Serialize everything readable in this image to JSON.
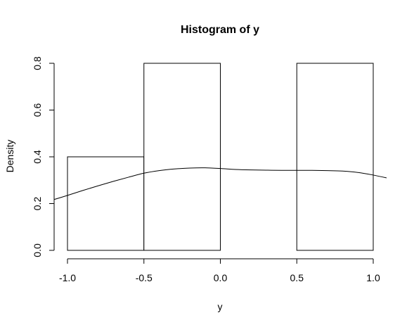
{
  "chart_data": {
    "type": "histogram",
    "title": "Histogram of y",
    "xlabel": "y",
    "ylabel": "Density",
    "bins": [
      {
        "start": -1.0,
        "end": -0.5,
        "density": 0.4
      },
      {
        "start": -0.5,
        "end": 0.0,
        "density": 0.8
      },
      {
        "start": 0.0,
        "end": 0.5,
        "density": 0.0
      },
      {
        "start": 0.5,
        "end": 1.0,
        "density": 0.8
      }
    ],
    "density_curve": {
      "x": [
        -1.1,
        -1.0,
        -0.9,
        -0.8,
        -0.7,
        -0.6,
        -0.5,
        -0.4,
        -0.3,
        -0.2,
        -0.1,
        0.0,
        0.1,
        0.2,
        0.3,
        0.4,
        0.5,
        0.6,
        0.7,
        0.8,
        0.9,
        1.0,
        1.1
      ],
      "y": [
        0.215,
        0.235,
        0.256,
        0.276,
        0.295,
        0.313,
        0.33,
        0.341,
        0.348,
        0.352,
        0.353,
        0.35,
        0.346,
        0.344,
        0.343,
        0.342,
        0.342,
        0.342,
        0.341,
        0.339,
        0.333,
        0.322,
        0.308
      ]
    },
    "xlim": [
      -1.0,
      1.0
    ],
    "ylim": [
      0.0,
      0.8
    ],
    "xticks": [
      -1.0,
      -0.5,
      0.0,
      0.5,
      1.0
    ],
    "xtick_labels": [
      "-1.0",
      "-0.5",
      "0.0",
      "0.5",
      "1.0"
    ],
    "yticks": [
      0.0,
      0.2,
      0.4,
      0.6,
      0.8
    ],
    "ytick_labels": [
      "0.0",
      "0.2",
      "0.4",
      "0.6",
      "0.8"
    ],
    "grid": false,
    "bar_fill": "#ffffff",
    "stroke_color": "#000000"
  }
}
